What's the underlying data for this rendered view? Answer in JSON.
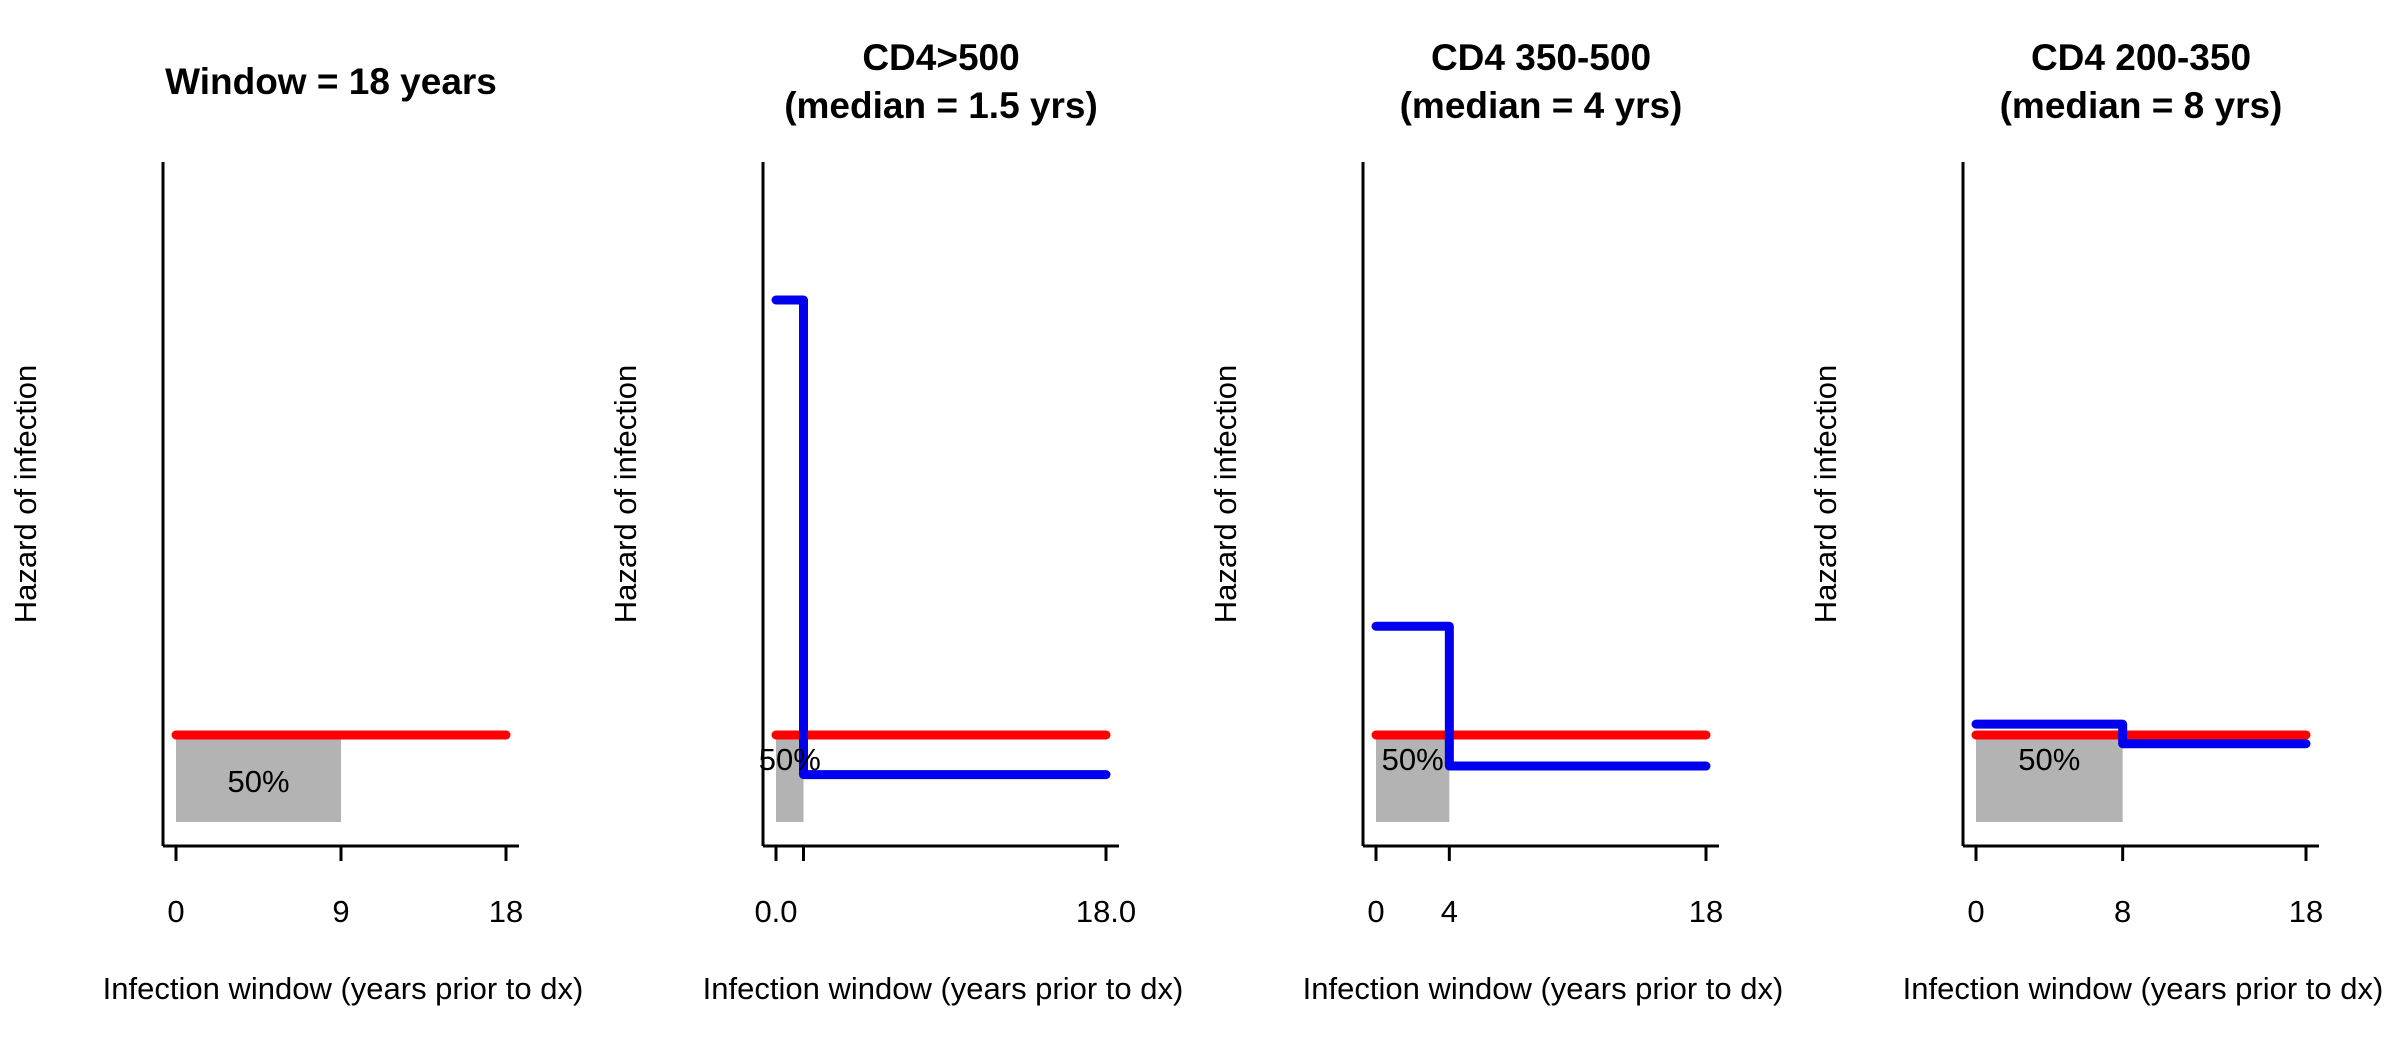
{
  "chart_data": [
    {
      "type": "line",
      "title_lines": [
        "Window = 18 years"
      ],
      "xlabel": "Infection window (years prior to dx)",
      "ylabel": "Hazard of infection",
      "xlim": [
        0,
        18
      ],
      "xticks": [
        0,
        9,
        18
      ],
      "xtick_labels": [
        "0",
        "9",
        "18"
      ],
      "shaded_region": {
        "x": [
          0,
          9
        ],
        "label": "50%",
        "color": "#b3b3b3"
      },
      "series": [
        {
          "color": "#ff0000",
          "points": [
            [
              0,
              1
            ],
            [
              18,
              1
            ]
          ]
        }
      ]
    },
    {
      "type": "line",
      "title_lines": [
        "CD4>500",
        "(median = 1.5 yrs)"
      ],
      "xlabel": "Infection window (years prior to dx)",
      "ylabel": "Hazard of infection",
      "xlim": [
        0,
        18
      ],
      "xticks": [
        0,
        1.5,
        18
      ],
      "xtick_labels": [
        "0.0",
        "",
        "18.0"
      ],
      "shaded_region": {
        "x": [
          0,
          1.5
        ],
        "label": "50%",
        "color": "#b3b3b3"
      },
      "series": [
        {
          "color": "#ff0000",
          "points": [
            [
              0,
              1
            ],
            [
              18,
              1
            ]
          ]
        },
        {
          "color": "#0000ee",
          "points": [
            [
              0,
              6
            ],
            [
              1.5,
              6
            ],
            [
              1.5,
              0.545
            ],
            [
              18,
              0.545
            ]
          ]
        }
      ]
    },
    {
      "type": "line",
      "title_lines": [
        "CD4 350-500",
        "(median = 4 yrs)"
      ],
      "xlabel": "Infection window (years prior to dx)",
      "ylabel": "Hazard of infection",
      "xlim": [
        0,
        18
      ],
      "xticks": [
        0,
        4,
        18
      ],
      "xtick_labels": [
        "0",
        "4",
        "18"
      ],
      "shaded_region": {
        "x": [
          0,
          4
        ],
        "label": "50%",
        "color": "#b3b3b3"
      },
      "series": [
        {
          "color": "#ff0000",
          "points": [
            [
              0,
              1
            ],
            [
              18,
              1
            ]
          ]
        },
        {
          "color": "#0000ee",
          "points": [
            [
              0,
              2.25
            ],
            [
              4,
              2.25
            ],
            [
              4,
              0.643
            ],
            [
              18,
              0.643
            ]
          ]
        }
      ]
    },
    {
      "type": "line",
      "title_lines": [
        "CD4 200-350",
        "(median = 8 yrs)"
      ],
      "xlabel": "Infection window (years prior to dx)",
      "ylabel": "Hazard of infection",
      "xlim": [
        0,
        18
      ],
      "xticks": [
        0,
        8,
        18
      ],
      "xtick_labels": [
        "0",
        "8",
        "18"
      ],
      "shaded_region": {
        "x": [
          0,
          8
        ],
        "label": "50%",
        "color": "#b3b3b3"
      },
      "series": [
        {
          "color": "#ff0000",
          "points": [
            [
              0,
              1
            ],
            [
              18,
              1
            ]
          ]
        },
        {
          "color": "#0000ee",
          "points": [
            [
              0,
              1.125
            ],
            [
              8,
              1.125
            ],
            [
              8,
              0.9
            ],
            [
              18,
              0.9
            ]
          ]
        }
      ]
    }
  ]
}
